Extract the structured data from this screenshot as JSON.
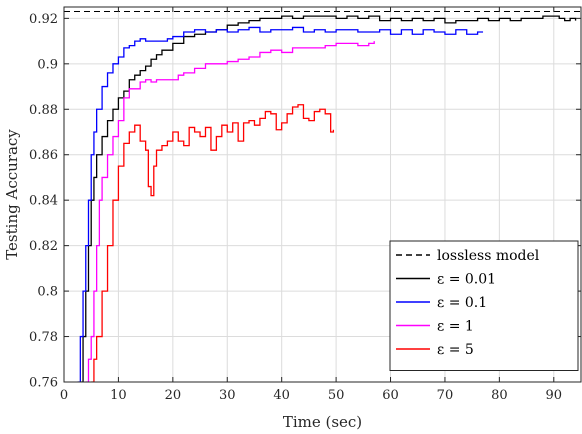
{
  "chart_data": {
    "type": "line",
    "xlabel": "Time (sec)",
    "ylabel": "Testing Accuracy",
    "xlim": [
      0,
      95
    ],
    "ylim": [
      0.76,
      0.925
    ],
    "xticks": [
      0,
      10,
      20,
      30,
      40,
      50,
      60,
      70,
      80,
      90
    ],
    "yticks": [
      0.76,
      0.78,
      0.8,
      0.82,
      0.84,
      0.86,
      0.88,
      0.9,
      0.92
    ],
    "grid": true,
    "legend_position": "bottom-right",
    "series": [
      {
        "name": "lossless model",
        "color": "#000000",
        "dash": "dashed",
        "x": [
          0,
          95
        ],
        "y": [
          0.923,
          0.923
        ]
      },
      {
        "name": "ε = 0.01",
        "color": "#000000",
        "dash": "solid",
        "x": [
          3,
          3.5,
          4,
          4.5,
          5,
          5.5,
          6,
          7,
          8,
          9,
          10,
          11,
          12,
          13,
          14,
          15,
          16,
          17,
          18,
          19,
          20,
          22,
          24,
          26,
          28,
          30,
          32,
          34,
          36,
          38,
          40,
          42,
          44,
          46,
          48,
          50,
          52,
          54,
          56,
          58,
          60,
          62,
          64,
          66,
          68,
          70,
          72,
          74,
          76,
          78,
          80,
          82,
          84,
          86,
          88,
          90,
          91,
          92,
          93,
          94
        ],
        "y": [
          0.76,
          0.78,
          0.8,
          0.82,
          0.84,
          0.85,
          0.86,
          0.868,
          0.875,
          0.88,
          0.885,
          0.888,
          0.893,
          0.895,
          0.897,
          0.899,
          0.902,
          0.904,
          0.906,
          0.906,
          0.909,
          0.912,
          0.913,
          0.914,
          0.915,
          0.917,
          0.918,
          0.919,
          0.92,
          0.92,
          0.921,
          0.92,
          0.921,
          0.921,
          0.921,
          0.92,
          0.921,
          0.92,
          0.921,
          0.919,
          0.92,
          0.919,
          0.92,
          0.919,
          0.92,
          0.918,
          0.919,
          0.919,
          0.92,
          0.919,
          0.92,
          0.919,
          0.92,
          0.92,
          0.921,
          0.921,
          0.92,
          0.919,
          0.92,
          0.919
        ]
      },
      {
        "name": "ε = 0.1",
        "color": "#0000ff",
        "dash": "solid",
        "x": [
          2.5,
          3,
          3.5,
          4,
          4.5,
          5,
          5.5,
          6,
          7,
          8,
          9,
          10,
          11,
          12,
          13,
          14,
          15,
          16,
          17,
          18,
          19,
          20,
          22,
          24,
          26,
          28,
          30,
          32,
          34,
          36,
          38,
          40,
          42,
          44,
          46,
          48,
          50,
          52,
          54,
          56,
          58,
          60,
          62,
          64,
          66,
          68,
          70,
          72,
          74,
          76,
          77
        ],
        "y": [
          0.76,
          0.78,
          0.8,
          0.82,
          0.84,
          0.86,
          0.87,
          0.88,
          0.89,
          0.896,
          0.9,
          0.903,
          0.907,
          0.908,
          0.91,
          0.911,
          0.91,
          0.91,
          0.91,
          0.91,
          0.911,
          0.912,
          0.914,
          0.915,
          0.914,
          0.915,
          0.914,
          0.915,
          0.916,
          0.914,
          0.915,
          0.915,
          0.916,
          0.914,
          0.915,
          0.914,
          0.915,
          0.915,
          0.914,
          0.914,
          0.915,
          0.913,
          0.915,
          0.913,
          0.915,
          0.914,
          0.913,
          0.915,
          0.913,
          0.914,
          0.914
        ]
      },
      {
        "name": "ε = 1",
        "color": "#ff00ff",
        "dash": "solid",
        "x": [
          4,
          4.5,
          5,
          5.5,
          6,
          6.5,
          7,
          8,
          9,
          10,
          11,
          12,
          13,
          14,
          15,
          16,
          17,
          18,
          19,
          20,
          21,
          22,
          24,
          26,
          28,
          30,
          32,
          34,
          36,
          38,
          40,
          42,
          44,
          46,
          48,
          50,
          52,
          54,
          56,
          57
        ],
        "y": [
          0.76,
          0.77,
          0.78,
          0.8,
          0.82,
          0.84,
          0.85,
          0.86,
          0.868,
          0.875,
          0.885,
          0.889,
          0.889,
          0.892,
          0.893,
          0.892,
          0.893,
          0.893,
          0.893,
          0.893,
          0.895,
          0.896,
          0.898,
          0.9,
          0.9,
          0.901,
          0.902,
          0.903,
          0.905,
          0.906,
          0.905,
          0.907,
          0.907,
          0.907,
          0.908,
          0.909,
          0.909,
          0.908,
          0.909,
          0.91
        ]
      },
      {
        "name": "ε = 5",
        "color": "#ff0000",
        "dash": "solid",
        "x": [
          5,
          5.5,
          6,
          7,
          8,
          9,
          10,
          11,
          12,
          13,
          14,
          15,
          15.5,
          16,
          16.5,
          17,
          18,
          19,
          20,
          21,
          22,
          23,
          24,
          25,
          26,
          27,
          28,
          29,
          30,
          31,
          32,
          33,
          34,
          35,
          36,
          37,
          38,
          39,
          40,
          41,
          42,
          43,
          44,
          45,
          46,
          47,
          48,
          49,
          49.5
        ],
        "y": [
          0.76,
          0.77,
          0.78,
          0.8,
          0.82,
          0.84,
          0.855,
          0.865,
          0.87,
          0.873,
          0.866,
          0.862,
          0.846,
          0.842,
          0.855,
          0.862,
          0.864,
          0.866,
          0.87,
          0.866,
          0.864,
          0.872,
          0.87,
          0.868,
          0.872,
          0.862,
          0.868,
          0.873,
          0.87,
          0.874,
          0.866,
          0.874,
          0.875,
          0.873,
          0.876,
          0.879,
          0.878,
          0.871,
          0.874,
          0.878,
          0.881,
          0.882,
          0.876,
          0.875,
          0.879,
          0.88,
          0.878,
          0.87,
          0.871
        ]
      }
    ]
  }
}
